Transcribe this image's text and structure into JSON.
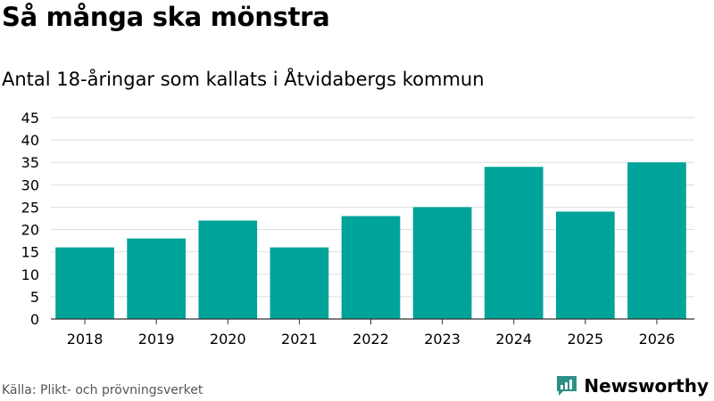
{
  "header": {
    "title": "Så många ska mönstra",
    "subtitle": "Antal 18-åringar som kallats i Åtvidabergs kommun"
  },
  "footer": {
    "source": "Källa: Plikt- och prövningsverket",
    "brand": "Newsworthy"
  },
  "colors": {
    "bar": "#00a39a",
    "grid": "#dddddd",
    "axis": "#333333",
    "brand": "#2e8f86"
  },
  "chart_data": {
    "type": "bar",
    "title": "Så många ska mönstra",
    "subtitle": "Antal 18-åringar som kallats i Åtvidabergs kommun",
    "xlabel": "",
    "ylabel": "",
    "categories": [
      "2018",
      "2019",
      "2020",
      "2021",
      "2022",
      "2023",
      "2024",
      "2025",
      "2026"
    ],
    "values": [
      16,
      18,
      22,
      16,
      23,
      25,
      34,
      24,
      35
    ],
    "ylim": [
      0,
      45
    ],
    "yticks": [
      0,
      5,
      10,
      15,
      20,
      25,
      30,
      35,
      40,
      45
    ],
    "grid": true,
    "legend": "none"
  }
}
